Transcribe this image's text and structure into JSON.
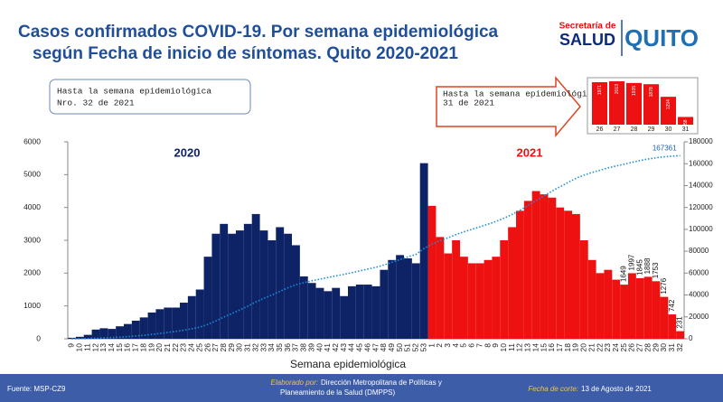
{
  "header": {
    "title_line1": "Casos confirmados COVID-19. Por semana epidemiológica",
    "title_line2": "según Fecha de inicio de síntomas. Quito 2020-2021",
    "logo_secretaria": "Secretaría de",
    "logo_salud": "SALUD",
    "logo_quito": "QUITO"
  },
  "notes": {
    "box_line1": "Hasta la semana epidemiológica",
    "box_line2": "Nro. 32 de 2021",
    "callout_line1": "Hasta la semana epidemiológica",
    "callout_line2": "31 de 2021"
  },
  "footer": {
    "source": "Fuente: MSP-CZ9",
    "made_by_label": "Elaborado por:",
    "made_by_line1": "Dirección Metropolitana de Políticas y",
    "made_by_line2": "Planeamiento de la Salud (DMPPS)",
    "cutoff_label": "Fecha de corte:",
    "cutoff_value": "13 de Agosto de 2021"
  },
  "chart_data": [
    {
      "type": "bar",
      "x_label": "Semana epidemiológica",
      "categories": [
        "9",
        "10",
        "11",
        "12",
        "13",
        "14",
        "15",
        "16",
        "17",
        "18",
        "19",
        "20",
        "21",
        "22",
        "23",
        "24",
        "25",
        "26",
        "27",
        "28",
        "29",
        "30",
        "31",
        "32",
        "33",
        "34",
        "35",
        "36",
        "37",
        "38",
        "39",
        "40",
        "41",
        "42",
        "43",
        "44",
        "45",
        "46",
        "47",
        "48",
        "49",
        "50",
        "51",
        "52",
        "53",
        "1",
        "2",
        "3",
        "4",
        "5",
        "6",
        "7",
        "8",
        "9",
        "10",
        "11",
        "12",
        "13",
        "14",
        "15",
        "16",
        "17",
        "18",
        "19",
        "20",
        "21",
        "22",
        "23",
        "24",
        "25",
        "26",
        "27",
        "28",
        "29",
        "30",
        "31",
        "32"
      ],
      "ylim": [
        0,
        6000
      ],
      "yticks": [
        0,
        1000,
        2000,
        3000,
        4000,
        5000,
        6000
      ],
      "y2lim": [
        0,
        180000
      ],
      "y2ticks": [
        0,
        20000,
        40000,
        60000,
        80000,
        100000,
        120000,
        140000,
        160000,
        180000
      ],
      "series": [
        {
          "name": "2020",
          "color": "#0d2366",
          "values": [
            30,
            60,
            120,
            280,
            320,
            300,
            380,
            450,
            550,
            650,
            800,
            900,
            950,
            950,
            1100,
            1300,
            1500,
            2500,
            3200,
            3500,
            3200,
            3300,
            3500,
            3800,
            3300,
            3000,
            3400,
            3200,
            2850,
            1900,
            1700,
            1550,
            1450,
            1550,
            1300,
            1600,
            1650,
            1650,
            1600,
            2100,
            2400,
            2550,
            2450,
            2300,
            5350,
            null,
            null,
            null,
            null,
            null,
            null,
            null,
            null,
            null,
            null,
            null,
            null,
            null,
            null,
            null,
            null,
            null,
            null,
            null,
            null,
            null,
            null,
            null,
            null,
            null,
            null,
            null,
            null,
            null,
            null,
            null,
            null
          ]
        },
        {
          "name": "2021",
          "color": "#ee1111",
          "values": [
            null,
            null,
            null,
            null,
            null,
            null,
            null,
            null,
            null,
            null,
            null,
            null,
            null,
            null,
            null,
            null,
            null,
            null,
            null,
            null,
            null,
            null,
            null,
            null,
            null,
            null,
            null,
            null,
            null,
            null,
            null,
            null,
            null,
            null,
            null,
            null,
            null,
            null,
            null,
            null,
            null,
            null,
            null,
            null,
            null,
            4050,
            3100,
            2600,
            3000,
            2500,
            2300,
            2300,
            2400,
            2500,
            3000,
            3400,
            3900,
            4200,
            4500,
            4400,
            4300,
            4000,
            3900,
            3800,
            3000,
            2400,
            2000,
            2100,
            1800,
            1649,
            1997,
            1845,
            1888,
            1753,
            1276,
            742,
            231
          ],
          "value_labels": [
            null,
            null,
            null,
            null,
            null,
            null,
            null,
            null,
            null,
            null,
            null,
            null,
            null,
            null,
            null,
            null,
            null,
            null,
            null,
            null,
            null,
            null,
            null,
            null,
            null,
            null,
            null,
            null,
            null,
            null,
            null,
            null,
            null,
            null,
            null,
            null,
            null,
            null,
            null,
            null,
            null,
            null,
            null,
            null,
            null,
            null,
            null,
            null,
            null,
            null,
            null,
            null,
            null,
            null,
            null,
            null,
            null,
            null,
            null,
            null,
            null,
            null,
            null,
            null,
            null,
            null,
            null,
            null,
            null,
            "1649",
            "1997",
            "1845",
            "1888",
            "1753",
            "1276",
            "742",
            "231"
          ]
        },
        {
          "type": "line",
          "axis": "y2",
          "color": "#1a8fd8",
          "values": [
            30,
            90,
            210,
            490,
            810,
            1110,
            1490,
            1940,
            2490,
            3140,
            3940,
            4840,
            5790,
            6740,
            7840,
            9140,
            10640,
            13140,
            16340,
            19840,
            23040,
            26340,
            29840,
            33640,
            36940,
            39940,
            43340,
            46540,
            49390,
            51290,
            52990,
            54540,
            55990,
            57540,
            58840,
            60440,
            62090,
            63740,
            65340,
            67440,
            69840,
            72390,
            74840,
            77140,
            82490,
            86540,
            89640,
            92240,
            95240,
            97740,
            100040,
            102340,
            104740,
            107240,
            110240,
            113640,
            117540,
            121740,
            126240,
            130640,
            134940,
            138940,
            142840,
            146640,
            149640,
            152040,
            154040,
            156140,
            157940,
            159500,
            161300,
            162900,
            164300,
            165400,
            166300,
            166900,
            167361
          ],
          "value_labels": [
            null,
            null,
            null,
            null,
            null,
            null,
            null,
            null,
            null,
            null,
            null,
            null,
            null,
            null,
            null,
            null,
            null,
            null,
            null,
            null,
            null,
            null,
            null,
            null,
            null,
            null,
            null,
            null,
            null,
            null,
            null,
            null,
            null,
            null,
            null,
            null,
            null,
            null,
            null,
            null,
            null,
            null,
            null,
            null,
            null,
            null,
            null,
            null,
            null,
            null,
            null,
            null,
            null,
            null,
            null,
            null,
            null,
            null,
            null,
            null,
            null,
            null,
            null,
            null,
            null,
            null,
            null,
            null,
            null,
            null,
            null,
            null,
            null,
            null,
            null,
            null,
            "167361"
          ]
        }
      ]
    },
    {
      "type": "bar",
      "categories": [
        "26",
        "27",
        "28",
        "29",
        "30",
        "31"
      ],
      "values": [
        1971,
        2013,
        1935,
        1878,
        1294,
        358
      ],
      "color": "#ee1111"
    }
  ]
}
